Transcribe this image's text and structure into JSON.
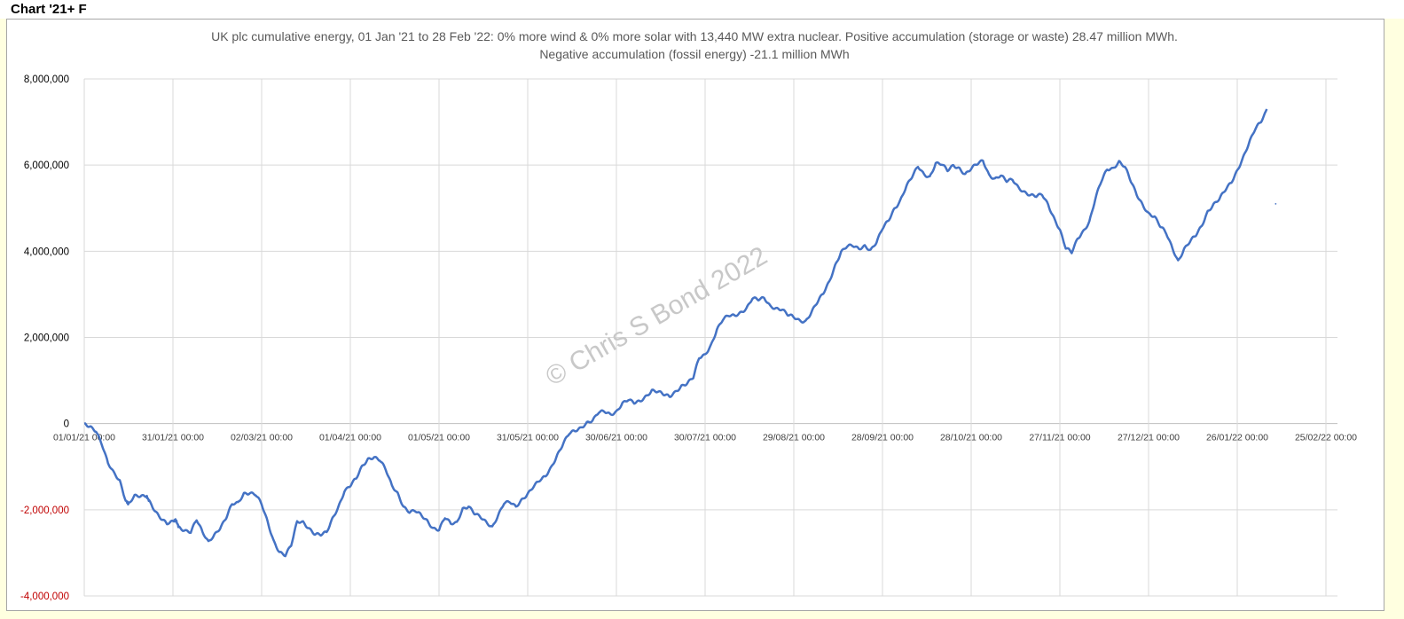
{
  "sheet_label": "Chart '21+ F",
  "watermark": "© Chris S Bond  2022",
  "chart_data": {
    "type": "line",
    "title": "UK plc cumulative energy, 01 Jan '21 to 28 Feb '22: 0% more wind & 0% more solar with 13,440 MW extra nuclear.  Positive accumulation (storage or waste) 28.47 million MWh.",
    "subtitle": "Negative accumulation (fossil energy) -21.1 million MWh",
    "xlabel": "",
    "ylabel": "",
    "ylim": [
      -4000000,
      8000000
    ],
    "xlim_days": [
      0,
      423
    ],
    "grid": true,
    "legend": "none",
    "line_color": "#4472c4",
    "negative_tick_color": "#c00000",
    "y_ticks": [
      {
        "value": 8000000,
        "label": "8,000,000"
      },
      {
        "value": 6000000,
        "label": "6,000,000"
      },
      {
        "value": 4000000,
        "label": "4,000,000"
      },
      {
        "value": 2000000,
        "label": "2,000,000"
      },
      {
        "value": 0,
        "label": "0"
      },
      {
        "value": -2000000,
        "label": "-2,000,000"
      },
      {
        "value": -4000000,
        "label": "-4,000,000"
      }
    ],
    "x_ticks": [
      {
        "day": 0,
        "label": "01/01/21 00:00"
      },
      {
        "day": 30,
        "label": "31/01/21 00:00"
      },
      {
        "day": 60,
        "label": "02/03/21 00:00"
      },
      {
        "day": 90,
        "label": "01/04/21 00:00"
      },
      {
        "day": 120,
        "label": "01/05/21 00:00"
      },
      {
        "day": 150,
        "label": "31/05/21 00:00"
      },
      {
        "day": 180,
        "label": "30/06/21 00:00"
      },
      {
        "day": 210,
        "label": "30/07/21 00:00"
      },
      {
        "day": 240,
        "label": "29/08/21 00:00"
      },
      {
        "day": 270,
        "label": "28/09/21 00:00"
      },
      {
        "day": 300,
        "label": "28/10/21 00:00"
      },
      {
        "day": 330,
        "label": "27/11/21 00:00"
      },
      {
        "day": 360,
        "label": "27/12/21 00:00"
      },
      {
        "day": 390,
        "label": "26/01/22 00:00"
      },
      {
        "day": 420,
        "label": "25/02/22 00:00"
      }
    ],
    "series": [
      {
        "points": [
          [
            0,
            0
          ],
          [
            2,
            -40000
          ],
          [
            4,
            -150000
          ],
          [
            6,
            -500000
          ],
          [
            8,
            -950000
          ],
          [
            10,
            -1150000
          ],
          [
            12,
            -1300000
          ],
          [
            14,
            -1750000
          ],
          [
            15,
            -1850000
          ],
          [
            17,
            -1700000
          ],
          [
            19,
            -1720000
          ],
          [
            21,
            -1680000
          ],
          [
            22,
            -1780000
          ],
          [
            24,
            -2000000
          ],
          [
            26,
            -2200000
          ],
          [
            28,
            -2350000
          ],
          [
            30,
            -2300000
          ],
          [
            31,
            -2250000
          ],
          [
            32,
            -2400000
          ],
          [
            34,
            -2450000
          ],
          [
            36,
            -2500000
          ],
          [
            38,
            -2250000
          ],
          [
            40,
            -2550000
          ],
          [
            42,
            -2750000
          ],
          [
            44,
            -2550000
          ],
          [
            46,
            -2400000
          ],
          [
            48,
            -2200000
          ],
          [
            50,
            -1900000
          ],
          [
            52,
            -1850000
          ],
          [
            54,
            -1600000
          ],
          [
            56,
            -1580000
          ],
          [
            58,
            -1650000
          ],
          [
            60,
            -1900000
          ],
          [
            62,
            -2300000
          ],
          [
            64,
            -2700000
          ],
          [
            66,
            -2950000
          ],
          [
            68,
            -3050000
          ],
          [
            70,
            -2850000
          ],
          [
            72,
            -2300000
          ],
          [
            74,
            -2280000
          ],
          [
            76,
            -2400000
          ],
          [
            78,
            -2550000
          ],
          [
            80,
            -2600000
          ],
          [
            82,
            -2550000
          ],
          [
            84,
            -2200000
          ],
          [
            86,
            -1900000
          ],
          [
            88,
            -1550000
          ],
          [
            90,
            -1450000
          ],
          [
            92,
            -1300000
          ],
          [
            94,
            -1000000
          ],
          [
            96,
            -800000
          ],
          [
            98,
            -750000
          ],
          [
            100,
            -850000
          ],
          [
            102,
            -1100000
          ],
          [
            104,
            -1450000
          ],
          [
            106,
            -1600000
          ],
          [
            108,
            -1900000
          ],
          [
            110,
            -2050000
          ],
          [
            112,
            -2050000
          ],
          [
            114,
            -2150000
          ],
          [
            116,
            -2250000
          ],
          [
            118,
            -2400000
          ],
          [
            120,
            -2450000
          ],
          [
            122,
            -2200000
          ],
          [
            124,
            -2350000
          ],
          [
            126,
            -2300000
          ],
          [
            128,
            -1950000
          ],
          [
            130,
            -1900000
          ],
          [
            132,
            -2100000
          ],
          [
            134,
            -2200000
          ],
          [
            136,
            -2300000
          ],
          [
            138,
            -2380000
          ],
          [
            140,
            -2100000
          ],
          [
            142,
            -1850000
          ],
          [
            144,
            -1850000
          ],
          [
            146,
            -1950000
          ],
          [
            148,
            -1750000
          ],
          [
            150,
            -1600000
          ],
          [
            152,
            -1450000
          ],
          [
            154,
            -1350000
          ],
          [
            156,
            -1250000
          ],
          [
            158,
            -1000000
          ],
          [
            160,
            -700000
          ],
          [
            162,
            -450000
          ],
          [
            164,
            -250000
          ],
          [
            166,
            -200000
          ],
          [
            168,
            -100000
          ],
          [
            170,
            50000
          ],
          [
            172,
            100000
          ],
          [
            174,
            250000
          ],
          [
            176,
            250000
          ],
          [
            178,
            200000
          ],
          [
            180,
            300000
          ],
          [
            182,
            500000
          ],
          [
            184,
            550000
          ],
          [
            186,
            450000
          ],
          [
            188,
            500000
          ],
          [
            190,
            650000
          ],
          [
            192,
            800000
          ],
          [
            194,
            750000
          ],
          [
            196,
            650000
          ],
          [
            198,
            600000
          ],
          [
            200,
            750000
          ],
          [
            202,
            900000
          ],
          [
            204,
            950000
          ],
          [
            206,
            1050000
          ],
          [
            208,
            1500000
          ],
          [
            210,
            1600000
          ],
          [
            212,
            1850000
          ],
          [
            214,
            2200000
          ],
          [
            216,
            2400000
          ],
          [
            218,
            2480000
          ],
          [
            220,
            2500000
          ],
          [
            222,
            2600000
          ],
          [
            224,
            2700000
          ],
          [
            226,
            2900000
          ],
          [
            228,
            2850000
          ],
          [
            230,
            2900000
          ],
          [
            232,
            2750000
          ],
          [
            234,
            2700000
          ],
          [
            236,
            2650000
          ],
          [
            238,
            2500000
          ],
          [
            240,
            2450000
          ],
          [
            242,
            2400000
          ],
          [
            244,
            2400000
          ],
          [
            246,
            2600000
          ],
          [
            248,
            2800000
          ],
          [
            250,
            3000000
          ],
          [
            252,
            3300000
          ],
          [
            254,
            3700000
          ],
          [
            256,
            4000000
          ],
          [
            258,
            4100000
          ],
          [
            260,
            4100000
          ],
          [
            262,
            4050000
          ],
          [
            264,
            4150000
          ],
          [
            266,
            4050000
          ],
          [
            268,
            4200000
          ],
          [
            270,
            4500000
          ],
          [
            272,
            4700000
          ],
          [
            274,
            5000000
          ],
          [
            276,
            5200000
          ],
          [
            278,
            5500000
          ],
          [
            280,
            5700000
          ],
          [
            282,
            5950000
          ],
          [
            284,
            5800000
          ],
          [
            286,
            5750000
          ],
          [
            288,
            6050000
          ],
          [
            290,
            6000000
          ],
          [
            292,
            5850000
          ],
          [
            294,
            6000000
          ],
          [
            296,
            5950000
          ],
          [
            298,
            5800000
          ],
          [
            300,
            5900000
          ],
          [
            302,
            6000000
          ],
          [
            304,
            6100000
          ],
          [
            306,
            5800000
          ],
          [
            308,
            5700000
          ],
          [
            310,
            5750000
          ],
          [
            312,
            5600000
          ],
          [
            314,
            5650000
          ],
          [
            316,
            5500000
          ],
          [
            318,
            5400000
          ],
          [
            320,
            5300000
          ],
          [
            322,
            5250000
          ],
          [
            324,
            5300000
          ],
          [
            326,
            5100000
          ],
          [
            328,
            4800000
          ],
          [
            330,
            4500000
          ],
          [
            332,
            4050000
          ],
          [
            334,
            3950000
          ],
          [
            336,
            4300000
          ],
          [
            338,
            4500000
          ],
          [
            340,
            4700000
          ],
          [
            342,
            5200000
          ],
          [
            344,
            5600000
          ],
          [
            346,
            5900000
          ],
          [
            348,
            5950000
          ],
          [
            350,
            6100000
          ],
          [
            352,
            5950000
          ],
          [
            354,
            5600000
          ],
          [
            356,
            5300000
          ],
          [
            358,
            5100000
          ],
          [
            360,
            4900000
          ],
          [
            362,
            4800000
          ],
          [
            364,
            4550000
          ],
          [
            366,
            4400000
          ],
          [
            368,
            4100000
          ],
          [
            370,
            3800000
          ],
          [
            372,
            4050000
          ],
          [
            374,
            4200000
          ],
          [
            376,
            4350000
          ],
          [
            378,
            4600000
          ],
          [
            380,
            4950000
          ],
          [
            382,
            5100000
          ],
          [
            384,
            5200000
          ],
          [
            386,
            5400000
          ],
          [
            388,
            5600000
          ],
          [
            390,
            5900000
          ],
          [
            392,
            6200000
          ],
          [
            394,
            6500000
          ],
          [
            396,
            6800000
          ],
          [
            398,
            7000000
          ],
          [
            400,
            7300000
          ]
        ],
        "stray_point": [
          403,
          5100000
        ]
      }
    ]
  }
}
